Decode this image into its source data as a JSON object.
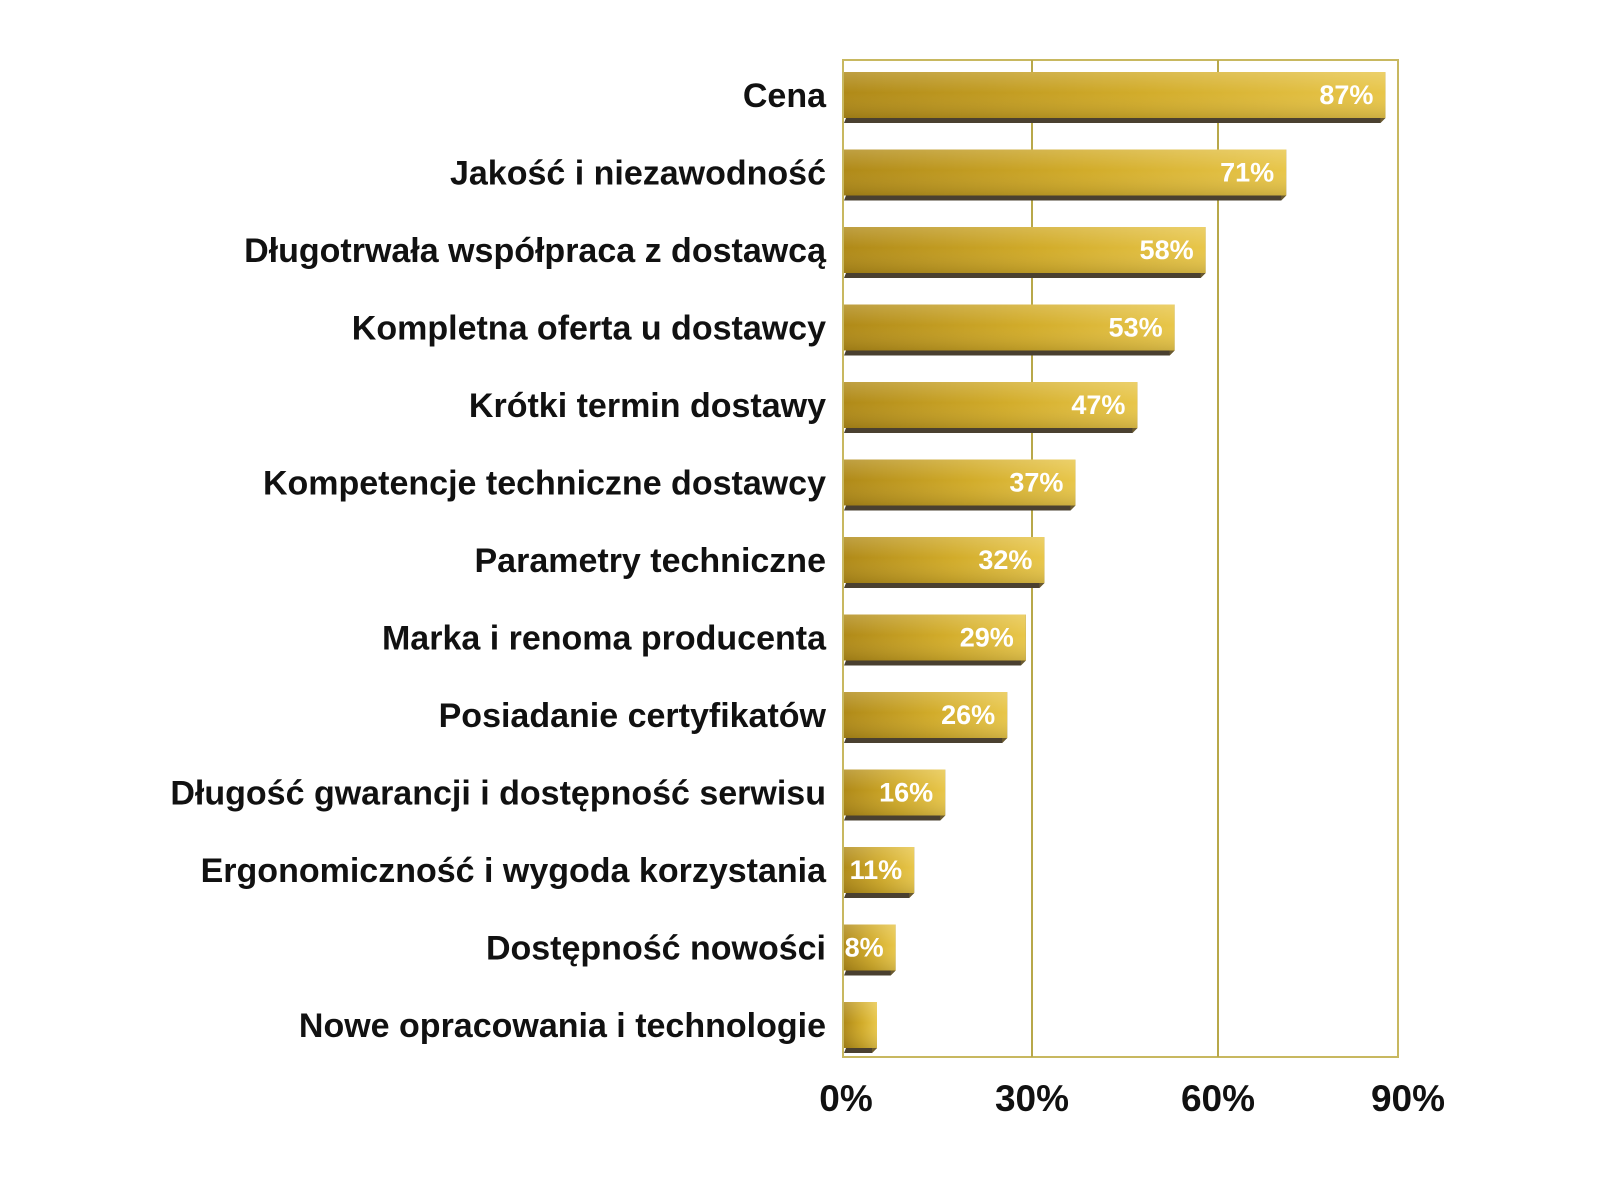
{
  "chart_data": {
    "type": "bar",
    "orientation": "horizontal",
    "categories": [
      "Cena",
      "Jakość i niezawodność",
      "Długotrwała współpraca z dostawcą",
      "Kompletna oferta u dostawcy",
      "Krótki termin dostawy",
      "Kompetencje techniczne dostawcy",
      "Parametry techniczne",
      "Marka i renoma producenta",
      "Posiadanie certyfikatów",
      "Długość gwarancji i dostępność serwisu",
      "Ergonomiczność i wygoda korzystania",
      "Dostępność nowości",
      "Nowe opracowania i technologie"
    ],
    "values": [
      87,
      71,
      58,
      53,
      47,
      37,
      32,
      29,
      26,
      16,
      11,
      8,
      5
    ],
    "value_labels": [
      "87%",
      "71%",
      "58%",
      "53%",
      "47%",
      "37%",
      "32%",
      "29%",
      "26%",
      "16%",
      "11%",
      "8%",
      ""
    ],
    "xlim": [
      0,
      90
    ],
    "xticks": [
      0,
      30,
      60,
      90
    ],
    "xtick_labels": [
      "0%",
      "30%",
      "60%",
      "90%"
    ],
    "title": "",
    "xlabel": "",
    "ylabel": "",
    "grid": "vertical",
    "legend": "none",
    "colors": {
      "bar_light": "#e8c64a",
      "bar_mid": "#d2ac2a",
      "bar_dark": "#b08a18",
      "bar_shadow": "#4a4030",
      "gridline": "#b8a84a",
      "frame": "#c8b860",
      "value_text": "#ffffff",
      "label_text": "#111111"
    }
  }
}
